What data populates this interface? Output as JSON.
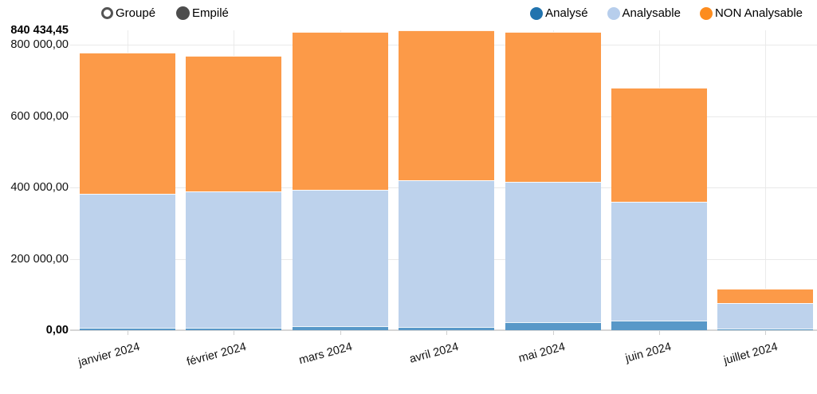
{
  "controls": {
    "grouped_label": "Groupé",
    "stacked_label": "Empilé",
    "selected": "Empilé"
  },
  "legend": {
    "position": "top-right",
    "items": [
      {
        "label": "Analysé",
        "color": "#2173ae"
      },
      {
        "label": "Analysable",
        "color": "#b7ceec"
      },
      {
        "label": "NON Analysable",
        "color": "#fd8c1e"
      }
    ]
  },
  "chart_data": {
    "type": "bar",
    "stacked": true,
    "grid": true,
    "legend_position": "top-right",
    "categories": [
      "janvier 2024",
      "février 2024",
      "mars 2024",
      "avril 2024",
      "mai 2024",
      "juin 2024",
      "juillet 2024"
    ],
    "series": [
      {
        "name": "Analysé",
        "color": "#5898c8",
        "values": [
          7000,
          7000,
          11000,
          9000,
          22000,
          27000,
          5000
        ]
      },
      {
        "name": "Analysable",
        "color": "#bdd2ec",
        "values": [
          375000,
          382000,
          382000,
          411434.45,
          393500,
          333000,
          71000
        ]
      },
      {
        "name": "NON Analysable",
        "color": "#fc9a48",
        "values": [
          396000,
          380000,
          442500,
          420000,
          420000,
          319000,
          40000
        ]
      }
    ],
    "y_axis": {
      "max": 840434.45,
      "ticks": [
        {
          "value": 840434.45,
          "label": "840 434,45",
          "bold": true,
          "grid": false
        },
        {
          "value": 800000,
          "label": "800 000,00",
          "bold": false,
          "grid": true
        },
        {
          "value": 600000,
          "label": "600 000,00",
          "bold": false,
          "grid": true
        },
        {
          "value": 400000,
          "label": "400 000,00",
          "bold": false,
          "grid": true
        },
        {
          "value": 200000,
          "label": "200 000,00",
          "bold": false,
          "grid": true
        },
        {
          "value": 0,
          "label": "0,00",
          "bold": true,
          "grid": false
        }
      ]
    }
  }
}
